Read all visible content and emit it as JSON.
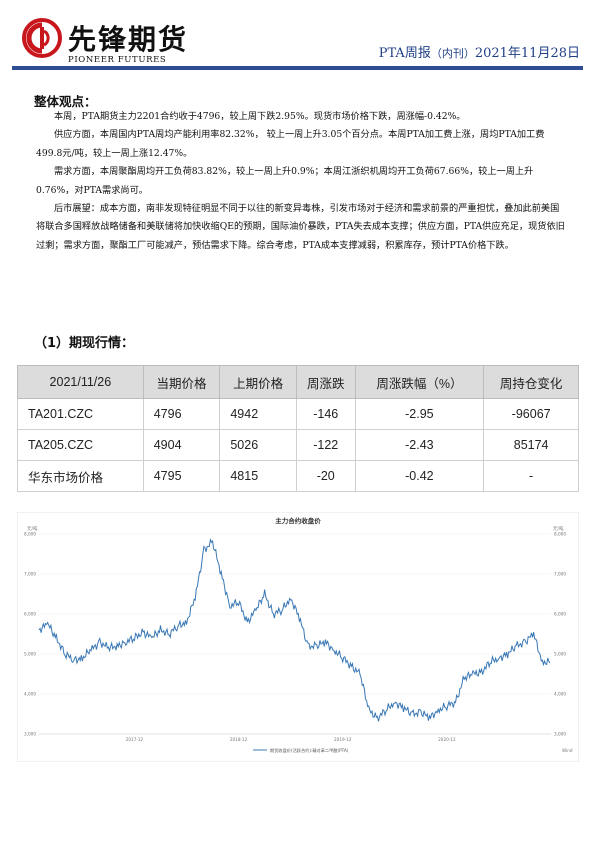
{
  "header": {
    "brand_cn": "先锋期货",
    "brand_en": "PIONEER FUTURES",
    "report_title": "PTA周报",
    "report_sub": "（内刊）",
    "report_date": "2021年11月28日"
  },
  "summary": {
    "heading": "整体观点：",
    "paragraphs": [
      "本周，PTA期货主力2201合约收于4796，较上周下跌2.95%。现货市场价格下跌，周涨幅-0.42%。",
      "供应方面，本周国内PTA周均产能利用率82.32%， 较上一周上升3.05个百分点。本周PTA加工费上涨，周均PTA加工费499.8元/吨，较上一周上涨12.47%。",
      "需求方面，本周聚酯周均开工负荷83.82%，较上一周上升0.9%；本周江浙织机周均开工负荷67.66%，较上一周上升0.76%，对PTA需求尚可。",
      "后市展望：成本方面，南非发现特征明显不同于以往的新变异毒株，引发市场对于经济和需求前景的严重担忧，叠加此前美国将联合多国释放战略储备和美联储将加快收缩QE的预期，国际油价暴跌，PTA失去成本支撑；供应方面，PTA供应充足，现货依旧过剩；需求方面，聚酯工厂可能减产，预估需求下降。综合考虑，PTA成本支撑减弱，积累库存，预计PTA价格下跌。"
    ]
  },
  "market": {
    "heading": "（1）期现行情：",
    "columns": [
      "2021/11/26",
      "当期价格",
      "上期价格",
      "周涨跌",
      "周涨跌幅（%）",
      "周持仓变化"
    ],
    "rows": [
      [
        "TA201.CZC",
        "4796",
        "4942",
        "-146",
        "-2.95",
        "-96067"
      ],
      [
        "TA205.CZC",
        "4904",
        "5026",
        "-122",
        "-2.43",
        "85174"
      ],
      [
        "华东市场价格",
        "4795",
        "4815",
        "-20",
        "-0.42",
        "-"
      ]
    ]
  },
  "chart_data": {
    "type": "line",
    "title": "主力合约收盘价",
    "ylabel_left": "元/吨",
    "ylabel_right": "元/吨",
    "ylim": [
      3000,
      8000
    ],
    "yticks": [
      "3,000",
      "4,000",
      "5,000",
      "6,000",
      "7,000",
      "8,000"
    ],
    "xticks": [
      "2017-12",
      "2018-12",
      "2019-12",
      "2020-12"
    ],
    "legend": "期货收盘价(活跃合约):精对苯二甲酸(PTA)",
    "source": "Wind",
    "grid": true,
    "legend_position": "bottom",
    "line_color": "#3a78b5",
    "series": [
      {
        "name": "期货收盘价(活跃合约):精对苯二甲酸(PTA)",
        "x": [
          "2017-01",
          "2017-02",
          "2017-03",
          "2017-04",
          "2017-05",
          "2017-06",
          "2017-07",
          "2017-08",
          "2017-09",
          "2017-10",
          "2017-11",
          "2017-12",
          "2018-01",
          "2018-02",
          "2018-03",
          "2018-04",
          "2018-05",
          "2018-06",
          "2018-07",
          "2018-08",
          "2018-09",
          "2018-10",
          "2018-11",
          "2018-12",
          "2019-01",
          "2019-02",
          "2019-03",
          "2019-04",
          "2019-05",
          "2019-06",
          "2019-07",
          "2019-08",
          "2019-09",
          "2019-10",
          "2019-11",
          "2019-12",
          "2020-01",
          "2020-02",
          "2020-03",
          "2020-04",
          "2020-05",
          "2020-06",
          "2020-07",
          "2020-08",
          "2020-09",
          "2020-10",
          "2020-11",
          "2020-12",
          "2021-01",
          "2021-02",
          "2021-03",
          "2021-04",
          "2021-05",
          "2021-06",
          "2021-07",
          "2021-08",
          "2021-09",
          "2021-10",
          "2021-11"
        ],
        "values": [
          5600,
          5750,
          5400,
          5000,
          4850,
          4900,
          5100,
          5300,
          5150,
          5200,
          5300,
          5400,
          5550,
          5400,
          5600,
          5500,
          5700,
          5800,
          6400,
          7600,
          7800,
          7000,
          6200,
          6300,
          5800,
          6100,
          6500,
          6000,
          6100,
          6400,
          5900,
          5200,
          5200,
          5300,
          5100,
          4900,
          4700,
          4500,
          3600,
          3400,
          3600,
          3800,
          3650,
          3500,
          3550,
          3400,
          3600,
          3700,
          3800,
          4400,
          4500,
          4550,
          4800,
          4900,
          5000,
          5200,
          5300,
          5500,
          4800
        ]
      }
    ]
  }
}
